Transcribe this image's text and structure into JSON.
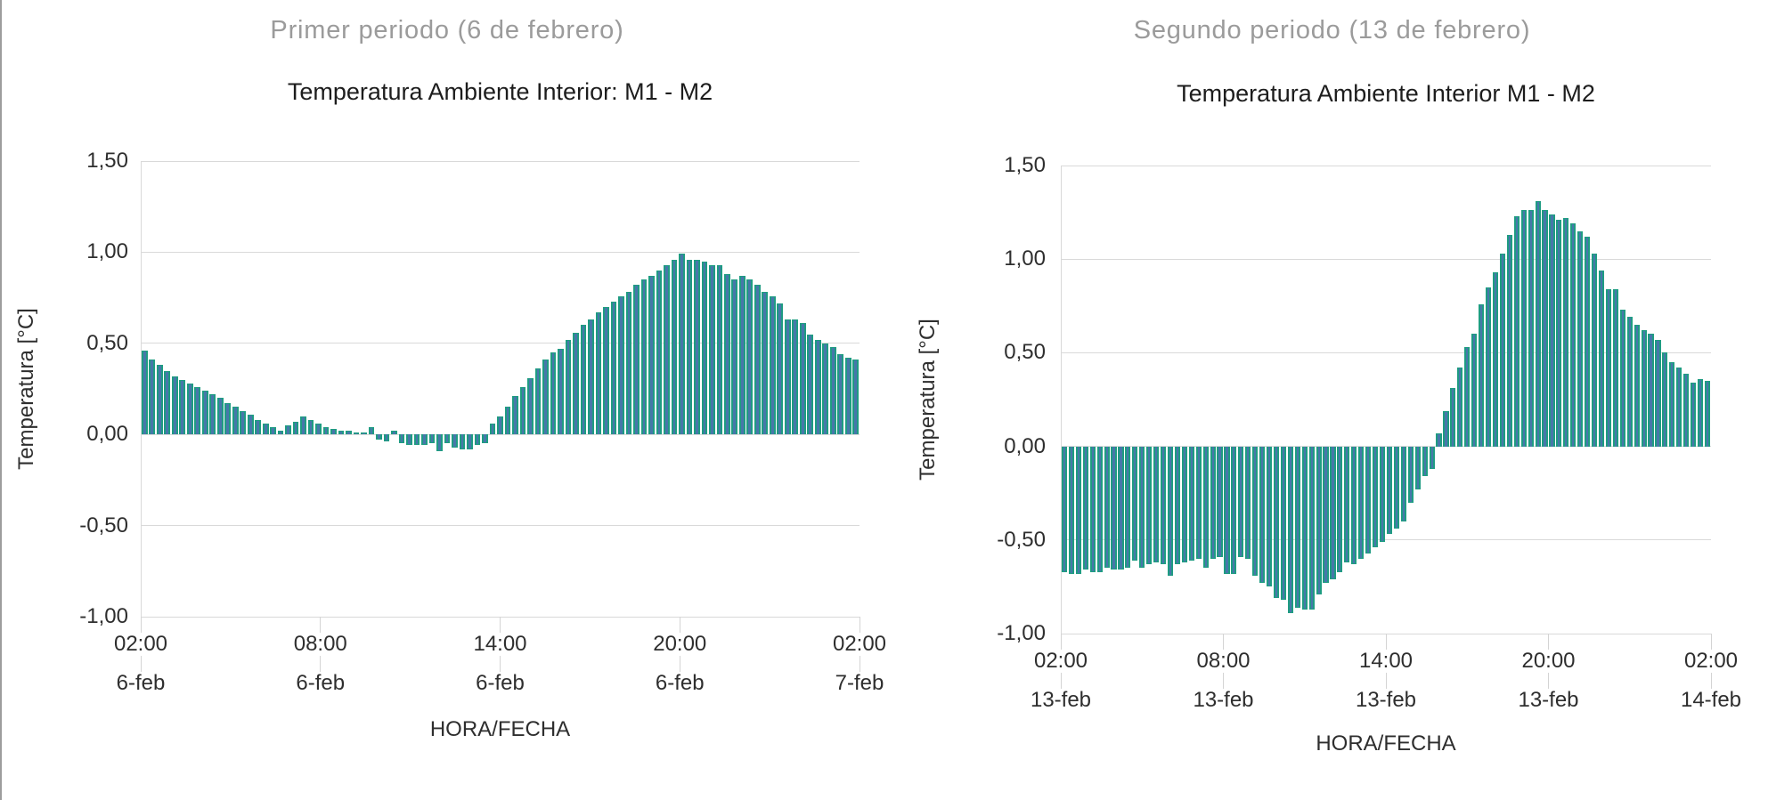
{
  "colors": {
    "bar_fill": "#4777aa",
    "bar_border": "#1f9c82",
    "gridline": "#d9d9d9",
    "tick_line": "#d4d4d4",
    "divider": "#9d9d9d",
    "header_text": "#9b9b9b",
    "title_text": "#1d1d1d",
    "axis_text": "#2e2e2e"
  },
  "divider": {
    "x": 1004
  },
  "charts": [
    {
      "header": "Primer periodo (6 de febrero)",
      "title": "Temperatura Ambiente Interior: M1 - M2",
      "y_axis_title": "Temperatura [°C]",
      "x_axis_title": "HORA/FECHA",
      "chart_data": {
        "type": "bar",
        "title": "Temperatura Ambiente Interior: M1 - M2",
        "xlabel": "HORA/FECHA",
        "ylabel": "Temperatura [°C]",
        "ylim": [
          -1.0,
          1.5
        ],
        "grid": "horizontal",
        "legend": "none",
        "values_estimated": true,
        "y_tick_labels": [
          "1,50",
          "1,00",
          "0,50",
          "0,00",
          "-0,50",
          "-1,00"
        ],
        "y_tick_values": [
          1.5,
          1.0,
          0.5,
          0.0,
          -0.5,
          -1.0
        ],
        "x_ticks": [
          {
            "time": "02:00",
            "date": "6-feb"
          },
          {
            "time": "08:00",
            "date": "6-feb"
          },
          {
            "time": "14:00",
            "date": "6-feb"
          },
          {
            "time": "20:00",
            "date": "6-feb"
          },
          {
            "time": "02:00",
            "date": "7-feb"
          }
        ],
        "values": [
          0.46,
          0.41,
          0.38,
          0.35,
          0.32,
          0.3,
          0.28,
          0.26,
          0.24,
          0.22,
          0.2,
          0.17,
          0.15,
          0.13,
          0.11,
          0.08,
          0.06,
          0.04,
          0.02,
          0.05,
          0.07,
          0.1,
          0.08,
          0.06,
          0.04,
          0.03,
          0.02,
          0.02,
          0.01,
          0.01,
          0.04,
          -0.03,
          -0.04,
          0.02,
          -0.05,
          -0.06,
          -0.06,
          -0.06,
          -0.05,
          -0.09,
          -0.05,
          -0.07,
          -0.08,
          -0.08,
          -0.06,
          -0.05,
          0.06,
          0.1,
          0.15,
          0.21,
          0.26,
          0.31,
          0.36,
          0.41,
          0.45,
          0.47,
          0.52,
          0.56,
          0.6,
          0.63,
          0.67,
          0.7,
          0.73,
          0.76,
          0.78,
          0.82,
          0.85,
          0.87,
          0.9,
          0.93,
          0.96,
          0.99,
          0.96,
          0.96,
          0.95,
          0.93,
          0.93,
          0.88,
          0.85,
          0.87,
          0.85,
          0.82,
          0.78,
          0.76,
          0.72,
          0.63,
          0.63,
          0.61,
          0.55,
          0.52,
          0.5,
          0.48,
          0.44,
          0.42,
          0.41
        ]
      }
    },
    {
      "header": "Segundo periodo (13 de febrero)",
      "title": "Temperatura Ambiente Interior M1 - M2",
      "y_axis_title": "Temperatura [°C]",
      "x_axis_title": "HORA/FECHA",
      "chart_data": {
        "type": "bar",
        "title": "Temperatura Ambiente Interior M1 - M2",
        "xlabel": "HORA/FECHA",
        "ylabel": "Temperatura [°C]",
        "ylim": [
          -1.0,
          1.5
        ],
        "grid": "horizontal",
        "legend": "none",
        "values_estimated": true,
        "y_tick_labels": [
          "1,50",
          "1,00",
          "0,50",
          "0,00",
          "-0,50",
          "-1,00"
        ],
        "y_tick_values": [
          1.5,
          1.0,
          0.5,
          0.0,
          -0.5,
          -1.0
        ],
        "x_ticks": [
          {
            "time": "02:00",
            "date": "13-feb"
          },
          {
            "time": "08:00",
            "date": "13-feb"
          },
          {
            "time": "14:00",
            "date": "13-feb"
          },
          {
            "time": "20:00",
            "date": "13-feb"
          },
          {
            "time": "02:00",
            "date": "14-feb"
          }
        ],
        "values": [
          -0.67,
          -0.68,
          -0.68,
          -0.66,
          -0.67,
          -0.67,
          -0.65,
          -0.66,
          -0.66,
          -0.65,
          -0.61,
          -0.65,
          -0.63,
          -0.62,
          -0.63,
          -0.69,
          -0.63,
          -0.62,
          -0.61,
          -0.6,
          -0.65,
          -0.6,
          -0.59,
          -0.68,
          -0.68,
          -0.59,
          -0.6,
          -0.69,
          -0.73,
          -0.75,
          -0.81,
          -0.82,
          -0.89,
          -0.86,
          -0.87,
          -0.87,
          -0.79,
          -0.73,
          -0.71,
          -0.67,
          -0.62,
          -0.63,
          -0.6,
          -0.57,
          -0.54,
          -0.51,
          -0.47,
          -0.44,
          -0.4,
          -0.3,
          -0.23,
          -0.16,
          -0.12,
          0.07,
          0.19,
          0.31,
          0.42,
          0.53,
          0.6,
          0.76,
          0.85,
          0.93,
          1.03,
          1.13,
          1.23,
          1.26,
          1.26,
          1.31,
          1.26,
          1.24,
          1.21,
          1.22,
          1.19,
          1.15,
          1.12,
          1.03,
          0.94,
          0.84,
          0.84,
          0.73,
          0.69,
          0.65,
          0.62,
          0.6,
          0.57,
          0.5,
          0.45,
          0.42,
          0.39,
          0.34,
          0.36,
          0.35
        ]
      }
    }
  ]
}
